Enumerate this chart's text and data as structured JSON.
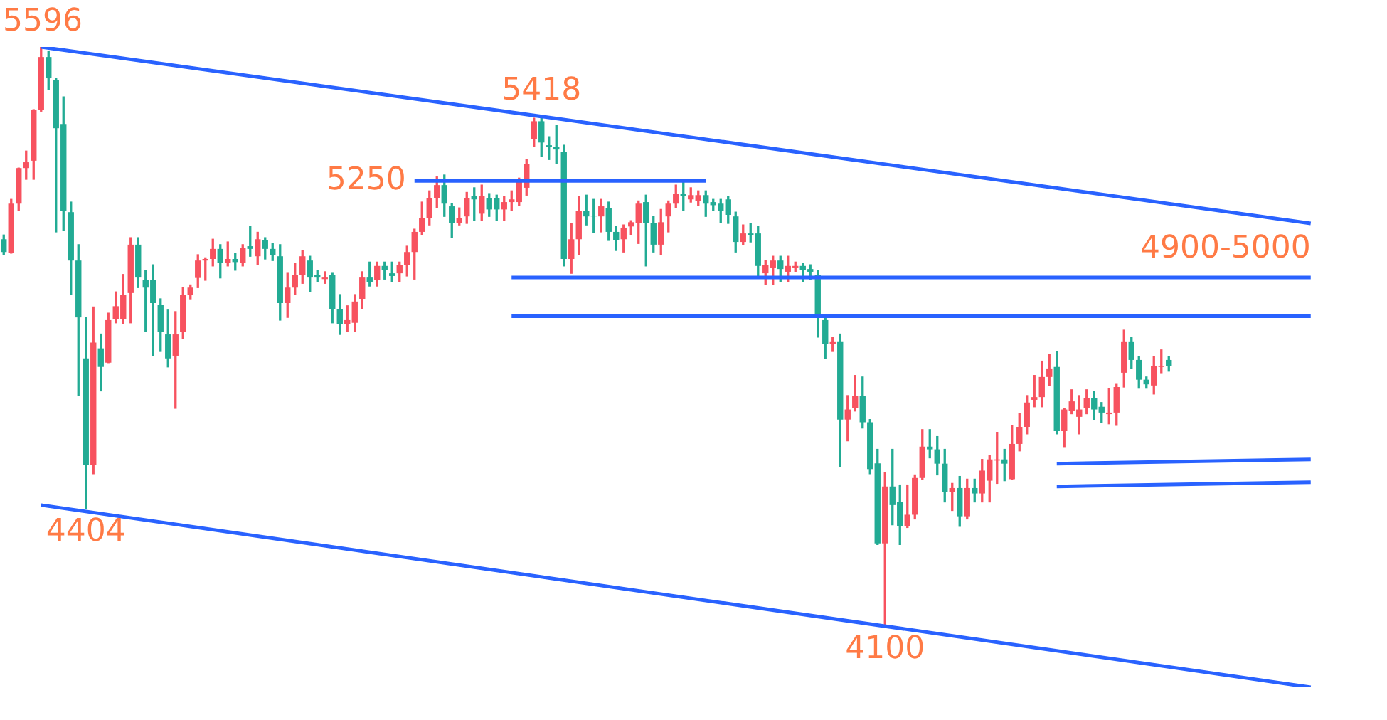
{
  "chart_data": {
    "type": "candlestick",
    "tick_labels": false,
    "colors": [
      "#22ab94",
      "#f7525f",
      "#f7525f",
      "#f7525f",
      "#f7525f",
      "#f7525f",
      "#22ab94",
      "#22ab94",
      "#22ab94",
      "#22ab94",
      "#22ab94",
      "#22ab94",
      "#f7525f",
      "#22ab94",
      "#f7525f",
      "#f7525f",
      "#f7525f",
      "#f7525f",
      "#22ab94",
      "#22ab94",
      "#22ab94",
      "#22ab94",
      "#22ab94",
      "#f7525f",
      "#f7525f",
      "#f7525f",
      "#f7525f",
      "#f7525f",
      "#f7525f",
      "#22ab94",
      "#f7525f",
      "#22ab94",
      "#f7525f",
      "#22ab94",
      "#f7525f",
      "#22ab94",
      "#22ab94",
      "#22ab94",
      "#f7525f",
      "#f7525f",
      "#f7525f",
      "#22ab94",
      "#22ab94",
      "#f7525f",
      "#22ab94",
      "#22ab94",
      "#f7525f",
      "#f7525f",
      "#f7525f",
      "#22ab94",
      "#f7525f",
      "#22ab94",
      "#22ab94",
      "#f7525f",
      "#f7525f",
      "#f7525f",
      "#f7525f",
      "#f7525f",
      "#f7525f",
      "#22ab94",
      "#22ab94",
      "#f7525f",
      "#f7525f",
      "#22ab94",
      "#f7525f",
      "#22ab94",
      "#22ab94",
      "#f7525f",
      "#f7525f",
      "#f7525f",
      "#f7525f",
      "#f7525f",
      "#22ab94",
      "#22ab94",
      "#22ab94",
      "#22ab94",
      "#f7525f",
      "#f7525f",
      "#22ab94",
      "#22ab94",
      "#f7525f",
      "#22ab94",
      "#22ab94",
      "#f7525f",
      "#f7525f",
      "#f7525f",
      "#22ab94",
      "#22ab94",
      "#f7525f",
      "#f7525f",
      "#f7525f",
      "#22ab94",
      "#f7525f",
      "#f7525f",
      "#22ab94",
      "#22ab94",
      "#22ab94",
      "#22ab94",
      "#22ab94",
      "#f7525f",
      "#22ab94",
      "#22ab94",
      "#f7525f",
      "#f7525f",
      "#22ab94",
      "#f7525f",
      "#f7525f",
      "#22ab94",
      "#22ab94",
      "#22ab94",
      "#22ab94",
      "#f7525f",
      "#22ab94",
      "#f7525f",
      "#f7525f",
      "#22ab94",
      "#22ab94",
      "#22ab94",
      "#f7525f",
      "#22ab94",
      "#22ab94",
      "#f7525f",
      "#f7525f",
      "#f7525f",
      "#22ab94",
      "#22ab94",
      "#22ab94",
      "#f7525f",
      "#22ab94",
      "#f7525f",
      "#22ab94",
      "#f7525f",
      "#f7525f",
      "#f7525f",
      "#22ab94",
      "#f7525f",
      "#f7525f",
      "#f7525f",
      "#f7525f",
      "#f7525f",
      "#f7525f",
      "#22ab94",
      "#f7525f",
      "#f7525f",
      "#f7525f",
      "#f7525f",
      "#22ab94",
      "#22ab94",
      "#f7525f",
      "#f7525f",
      "#f7525f",
      "#22ab94",
      "#22ab94",
      "#22ab94",
      "#f7525f",
      "#f7525f",
      "#22ab94",
      null,
      null,
      null,
      null,
      null,
      null,
      null,
      null,
      null,
      null,
      null,
      null,
      null,
      null,
      null,
      null,
      null,
      null,
      null
    ],
    "categories": [
      null,
      null,
      null,
      null,
      null,
      null,
      null,
      null,
      null,
      null,
      null,
      null,
      null,
      null,
      null,
      null,
      null,
      null,
      null,
      null,
      null,
      null,
      null,
      null,
      null,
      null,
      null,
      null,
      null,
      null,
      null,
      null,
      null,
      null,
      null,
      null,
      null,
      null,
      null,
      null,
      null,
      null,
      null,
      null,
      null,
      null,
      null,
      null,
      null,
      null,
      null,
      null,
      null,
      null,
      null,
      null,
      null,
      null,
      null,
      null,
      null,
      null,
      null,
      null,
      null,
      null,
      null,
      null,
      null,
      null,
      null,
      null,
      null,
      null,
      null,
      null,
      null,
      null,
      null,
      null,
      null,
      null,
      null,
      null,
      null,
      null,
      null,
      null,
      null,
      null,
      null,
      null,
      null,
      null,
      null,
      null,
      null,
      null,
      null,
      null,
      null,
      null,
      null,
      null,
      null,
      null,
      null,
      null,
      null,
      null,
      null,
      null,
      null,
      null,
      null,
      null,
      null,
      null,
      null,
      null,
      null,
      null,
      null,
      null,
      null,
      null,
      null,
      null,
      null,
      null,
      null,
      null,
      null,
      null,
      null,
      null,
      null,
      null,
      null,
      null,
      null,
      null,
      null,
      null,
      null,
      null,
      null,
      null,
      null,
      null,
      null,
      null,
      null,
      null,
      null,
      null,
      null,
      null,
      null,
      null,
      null,
      null,
      null,
      null,
      null,
      null,
      null,
      null,
      null,
      null,
      null,
      null,
      null,
      null,
      null,
      null
    ],
    "ohlc": [
      [
        5099,
        5110,
        5059,
        5066
      ],
      [
        5063,
        5202,
        5063,
        5191
      ],
      [
        5191,
        5283,
        5173,
        5283
      ],
      [
        5283,
        5327,
        5254,
        5298
      ],
      [
        5302,
        5434,
        5254,
        5434
      ],
      [
        5434,
        5596,
        5430,
        5570
      ],
      [
        5570,
        5585,
        5485,
        5515
      ],
      [
        5511,
        5515,
        5118,
        5386
      ],
      [
        5397,
        5467,
        5121,
        5173
      ],
      [
        5169,
        5195,
        4956,
        5044
      ],
      [
        5044,
        5085,
        4695,
        4897
      ],
      [
        4791,
        4897,
        4404,
        4515
      ],
      [
        4515,
        4924,
        4493,
        4832
      ],
      [
        4817,
        4854,
        4707,
        4769
      ],
      [
        4780,
        4908,
        4780,
        4890
      ],
      [
        4893,
        4963,
        4883,
        4926
      ],
      [
        4893,
        5008,
        4880,
        4956
      ],
      [
        4960,
        5103,
        4883,
        5085
      ],
      [
        5085,
        5103,
        4974,
        5000
      ],
      [
        4993,
        5019,
        4860,
        4974
      ],
      [
        4993,
        5033,
        4798,
        4934
      ],
      [
        4930,
        4945,
        4809,
        4860
      ],
      [
        4853,
        4916,
        4769,
        4791
      ],
      [
        4798,
        4912,
        4662,
        4853
      ],
      [
        4860,
        4974,
        4842,
        4956
      ],
      [
        4956,
        4981,
        4945,
        4974
      ],
      [
        4999,
        5059,
        4974,
        5044
      ],
      [
        5044,
        5051,
        4993,
        5048
      ],
      [
        5048,
        5099,
        5030,
        5074
      ],
      [
        5074,
        5085,
        4999,
        5037
      ],
      [
        5037,
        5092,
        5030,
        5048
      ],
      [
        5048,
        5062,
        5019,
        5040
      ],
      [
        5037,
        5085,
        5030,
        5077
      ],
      [
        5081,
        5132,
        5055,
        5074
      ],
      [
        5055,
        5117,
        5033,
        5099
      ],
      [
        5096,
        5103,
        5048,
        5074
      ],
      [
        5074,
        5088,
        5044,
        5059
      ],
      [
        5055,
        5085,
        4890,
        4934
      ],
      [
        4934,
        5011,
        4897,
        4974
      ],
      [
        4974,
        5037,
        4956,
        5007
      ],
      [
        5007,
        5070,
        4985,
        5055
      ],
      [
        5044,
        5055,
        4963,
        5000
      ],
      [
        5007,
        5019,
        4989,
        5000
      ],
      [
        4996,
        5015,
        4985,
        5000
      ],
      [
        5007,
        5011,
        4883,
        4919
      ],
      [
        4919,
        4956,
        4853,
        4879
      ],
      [
        4879,
        4927,
        4861,
        4890
      ],
      [
        4883,
        4956,
        4861,
        4938
      ],
      [
        4945,
        5015,
        4919,
        5000
      ],
      [
        5000,
        5040,
        4978,
        4989
      ],
      [
        4993,
        5040,
        4978,
        5030
      ],
      [
        5030,
        5040,
        4996,
        5019
      ],
      [
        5011,
        5040,
        4989,
        5004
      ],
      [
        5011,
        5040,
        4989,
        5033
      ],
      [
        5033,
        5081,
        5004,
        5066
      ],
      [
        5066,
        5125,
        4996,
        5118
      ],
      [
        5118,
        5195,
        5110,
        5154
      ],
      [
        5154,
        5224,
        5136,
        5206
      ],
      [
        5206,
        5260,
        5180,
        5239
      ],
      [
        5239,
        5265,
        5158,
        5191
      ],
      [
        5184,
        5191,
        5103,
        5140
      ],
      [
        5140,
        5180,
        5136,
        5154
      ],
      [
        5158,
        5220,
        5140,
        5206
      ],
      [
        5210,
        5232,
        5147,
        5202
      ],
      [
        5165,
        5239,
        5147,
        5210
      ],
      [
        5206,
        5217,
        5158,
        5176
      ],
      [
        5206,
        5213,
        5147,
        5176
      ],
      [
        5176,
        5210,
        5147,
        5195
      ],
      [
        5195,
        5224,
        5173,
        5202
      ],
      [
        5195,
        5257,
        5187,
        5250
      ],
      [
        5232,
        5305,
        5213,
        5294
      ],
      [
        5357,
        5412,
        5338,
        5404
      ],
      [
        5404,
        5418,
        5313,
        5349
      ],
      [
        5342,
        5364,
        5305,
        5338
      ],
      [
        5338,
        5393,
        5294,
        5331
      ],
      [
        5324,
        5342,
        5030,
        5048
      ],
      [
        5048,
        5140,
        5011,
        5099
      ],
      [
        5099,
        5210,
        5059,
        5173
      ],
      [
        5173,
        5213,
        5136,
        5158
      ],
      [
        5160,
        5202,
        5117,
        5158
      ],
      [
        5158,
        5202,
        5118,
        5184
      ],
      [
        5180,
        5195,
        5096,
        5118
      ],
      [
        5118,
        5132,
        5070,
        5096
      ],
      [
        5099,
        5136,
        5066,
        5129
      ],
      [
        5132,
        5147,
        5110,
        5143
      ],
      [
        5140,
        5198,
        5088,
        5191
      ],
      [
        5195,
        5213,
        5030,
        5140
      ],
      [
        5140,
        5158,
        5066,
        5085
      ],
      [
        5085,
        5176,
        5059,
        5143
      ],
      [
        5158,
        5198,
        5118,
        5191
      ],
      [
        5191,
        5239,
        5180,
        5217
      ],
      [
        5217,
        5246,
        5173,
        5210
      ],
      [
        5202,
        5232,
        5195,
        5213
      ],
      [
        5198,
        5224,
        5187,
        5213
      ],
      [
        5213,
        5224,
        5158,
        5191
      ],
      [
        5195,
        5202,
        5173,
        5187
      ],
      [
        5191,
        5202,
        5143,
        5173
      ],
      [
        5202,
        5209,
        5140,
        5162
      ],
      [
        5158,
        5169,
        5066,
        5092
      ],
      [
        5092,
        5136,
        5085,
        5114
      ],
      [
        5114,
        5140,
        5092,
        5110
      ],
      [
        5114,
        5132,
        5004,
        5030
      ],
      [
        5011,
        5044,
        4982,
        5033
      ],
      [
        5026,
        5055,
        4982,
        5044
      ],
      [
        5044,
        5055,
        4989,
        5022
      ],
      [
        5015,
        5055,
        4989,
        5030
      ],
      [
        5026,
        5040,
        5015,
        5030
      ],
      [
        5030,
        5036,
        4989,
        5019
      ],
      [
        5022,
        5033,
        4996,
        5015
      ],
      [
        5007,
        5019,
        4846,
        4897
      ],
      [
        4890,
        4897,
        4791,
        4828
      ],
      [
        4828,
        4846,
        4809,
        4835
      ],
      [
        4835,
        4854,
        4512,
        4633
      ],
      [
        4633,
        4695,
        4578,
        4659
      ],
      [
        4662,
        4747,
        4655,
        4695
      ],
      [
        4695,
        4743,
        4611,
        4626
      ],
      [
        4626,
        4633,
        4493,
        4505
      ],
      [
        4520,
        4556,
        4310,
        4313
      ],
      [
        4313,
        4497,
        4100,
        4460
      ],
      [
        4460,
        4556,
        4361,
        4412
      ],
      [
        4420,
        4464,
        4310,
        4357
      ],
      [
        4357,
        4464,
        4354,
        4387
      ],
      [
        4387,
        4490,
        4376,
        4482
      ],
      [
        4482,
        4607,
        4478,
        4563
      ],
      [
        4563,
        4607,
        4534,
        4556
      ],
      [
        4556,
        4589,
        4490,
        4519
      ],
      [
        4519,
        4556,
        4420,
        4445
      ],
      [
        4445,
        4468,
        4398,
        4456
      ],
      [
        4456,
        4486,
        4357,
        4383
      ],
      [
        4383,
        4479,
        4376,
        4456
      ],
      [
        4456,
        4479,
        4420,
        4442
      ],
      [
        4442,
        4530,
        4420,
        4501
      ],
      [
        4475,
        4541,
        4420,
        4530
      ],
      [
        4527,
        4600,
        4468,
        4530
      ],
      [
        4530,
        4556,
        4475,
        4519
      ],
      [
        4479,
        4618,
        4479,
        4570
      ],
      [
        4570,
        4648,
        4552,
        4614
      ],
      [
        4614,
        4695,
        4596,
        4677
      ],
      [
        4684,
        4747,
        4666,
        4691
      ],
      [
        4691,
        4784,
        4666,
        4743
      ],
      [
        4743,
        4802,
        4721,
        4765
      ],
      [
        4769,
        4809,
        4596,
        4603
      ],
      [
        4603,
        4662,
        4563,
        4659
      ],
      [
        4655,
        4710,
        4648,
        4680
      ],
      [
        4640,
        4695,
        4596,
        4659
      ],
      [
        4662,
        4710,
        4648,
        4688
      ],
      [
        4688,
        4706,
        4633,
        4659
      ],
      [
        4666,
        4677,
        4626,
        4651
      ],
      [
        4647,
        4714,
        4622,
        4651
      ],
      [
        4651,
        4724,
        4618,
        4717
      ],
      [
        4754,
        4864,
        4717,
        4835
      ],
      [
        4835,
        4846,
        4765,
        4787
      ],
      [
        4787,
        4795,
        4714,
        4736
      ],
      [
        4736,
        4743,
        4714,
        4724
      ],
      [
        4721,
        4795,
        4699,
        4772
      ],
      [
        4769,
        4813,
        4754,
        4772
      ],
      [
        4787,
        4795,
        4758,
        4772
      ],
      null,
      null,
      null,
      null,
      null,
      null,
      null,
      null,
      null,
      null,
      null,
      null,
      null,
      null,
      null,
      null,
      null,
      null,
      null
    ],
    "series": [
      {
        "type": "line",
        "color": "#2962ff",
        "values": [
          null,
          null,
          null,
          null,
          null,
          5596,
          null,
          null,
          null,
          null,
          null,
          null,
          null,
          null,
          null,
          null,
          null,
          null,
          null,
          null,
          null,
          null,
          null,
          null,
          null,
          null,
          null,
          null,
          null,
          null,
          null,
          null,
          null,
          null,
          null,
          null,
          null,
          null,
          null,
          null,
          null,
          null,
          null,
          null,
          null,
          null,
          null,
          null,
          null,
          null,
          null,
          null,
          null,
          null,
          null,
          null,
          null,
          null,
          null,
          null,
          null,
          null,
          null,
          null,
          null,
          null,
          null,
          null,
          null,
          null,
          null,
          null,
          null,
          null,
          null,
          null,
          null,
          null,
          null,
          null,
          null,
          null,
          null,
          null,
          null,
          null,
          null,
          null,
          null,
          null,
          null,
          null,
          null,
          null,
          null,
          null,
          null,
          null,
          null,
          null,
          null,
          null,
          null,
          null,
          null,
          null,
          null,
          null,
          null,
          null,
          null,
          null,
          null,
          null,
          null,
          null,
          null,
          null,
          null,
          null,
          null,
          null,
          null,
          null,
          null,
          null,
          null,
          null,
          null,
          null,
          null,
          null,
          null,
          null,
          null,
          null,
          null,
          null,
          null,
          null,
          null,
          null,
          null,
          null,
          null,
          null,
          null,
          null,
          null,
          null,
          null,
          null,
          null,
          null,
          null,
          null,
          null,
          null,
          null,
          null,
          null,
          null,
          null,
          null,
          null,
          null,
          null,
          null,
          null,
          null,
          null,
          null,
          null,
          null,
          null,
          5140
        ]
      },
      {
        "type": "line",
        "color": "#2962ff",
        "values": [
          null,
          null,
          null,
          null,
          null,
          4412,
          null,
          null,
          null,
          null,
          null,
          null,
          null,
          null,
          null,
          null,
          null,
          null,
          null,
          null,
          null,
          null,
          null,
          null,
          null,
          null,
          null,
          null,
          null,
          null,
          null,
          null,
          null,
          null,
          null,
          null,
          null,
          null,
          null,
          null,
          null,
          null,
          null,
          null,
          null,
          null,
          null,
          null,
          null,
          null,
          null,
          null,
          null,
          null,
          null,
          null,
          null,
          null,
          null,
          null,
          null,
          null,
          null,
          null,
          null,
          null,
          null,
          null,
          null,
          null,
          null,
          null,
          null,
          null,
          null,
          null,
          null,
          null,
          null,
          null,
          null,
          null,
          null,
          null,
          null,
          null,
          null,
          null,
          null,
          null,
          null,
          null,
          null,
          null,
          null,
          null,
          null,
          null,
          null,
          null,
          null,
          null,
          null,
          null,
          null,
          null,
          null,
          null,
          null,
          null,
          null,
          null,
          null,
          null,
          null,
          null,
          null,
          null,
          null,
          null,
          null,
          null,
          null,
          null,
          null,
          null,
          null,
          null,
          null,
          null,
          null,
          null,
          null,
          null,
          null,
          null,
          null,
          null,
          null,
          null,
          null,
          null,
          null,
          null,
          null,
          null,
          null,
          null,
          null,
          null,
          null,
          null,
          null,
          null,
          null,
          null,
          null,
          null,
          null,
          null,
          null,
          null,
          null,
          null,
          null,
          null,
          null,
          null,
          null,
          null,
          null,
          null,
          null,
          null,
          null,
          3941
        ]
      },
      {
        "type": "line",
        "name": "5250",
        "color": "#2962ff",
        "values": [
          null,
          null,
          null,
          null,
          null,
          null,
          null,
          null,
          null,
          null,
          null,
          null,
          null,
          null,
          null,
          null,
          null,
          null,
          null,
          null,
          null,
          null,
          null,
          null,
          null,
          null,
          null,
          null,
          null,
          null,
          null,
          null,
          null,
          null,
          null,
          null,
          null,
          null,
          null,
          null,
          null,
          null,
          null,
          null,
          null,
          null,
          null,
          null,
          null,
          null,
          null,
          null,
          null,
          null,
          null,
          5250,
          null,
          null,
          null,
          null,
          null,
          null,
          null,
          null,
          null,
          null,
          null,
          null,
          null,
          null,
          null,
          null,
          null,
          null,
          null,
          null,
          null,
          null,
          null,
          null,
          null,
          null,
          null,
          null,
          null,
          null,
          null,
          null,
          null,
          null,
          null,
          null,
          null,
          null,
          5250,
          null,
          null,
          null,
          null,
          null,
          null,
          null,
          null,
          null,
          null,
          null,
          null,
          null,
          null,
          null,
          null,
          null,
          null,
          null,
          null,
          null,
          null,
          null,
          null,
          null,
          null,
          null,
          null,
          null,
          null,
          null,
          null,
          null,
          null,
          null,
          null,
          null,
          null,
          null,
          null,
          null,
          null,
          null,
          null,
          null,
          null,
          null,
          null,
          null,
          null,
          null,
          null,
          null,
          null,
          null,
          null,
          null,
          null,
          null,
          null,
          null,
          null,
          null,
          null,
          null,
          null,
          null,
          null,
          null,
          null,
          null,
          null,
          null,
          null,
          null,
          null,
          null,
          null,
          null,
          null,
          null
        ]
      },
      {
        "type": "line",
        "color": "#2962ff",
        "values": [
          null,
          null,
          null,
          null,
          null,
          null,
          null,
          null,
          null,
          null,
          null,
          null,
          null,
          null,
          null,
          null,
          null,
          null,
          null,
          null,
          null,
          null,
          null,
          null,
          null,
          null,
          null,
          null,
          null,
          null,
          null,
          null,
          null,
          null,
          null,
          null,
          null,
          null,
          null,
          null,
          null,
          null,
          null,
          null,
          null,
          null,
          null,
          null,
          null,
          null,
          null,
          null,
          null,
          null,
          null,
          null,
          null,
          null,
          null,
          null,
          null,
          null,
          null,
          null,
          null,
          null,
          null,
          null,
          5000,
          null,
          null,
          null,
          null,
          null,
          null,
          null,
          null,
          null,
          null,
          null,
          null,
          null,
          null,
          null,
          null,
          null,
          null,
          null,
          null,
          null,
          null,
          null,
          null,
          null,
          null,
          null,
          null,
          null,
          null,
          null,
          null,
          null,
          null,
          null,
          null,
          null,
          null,
          null,
          null,
          null,
          null,
          null,
          null,
          null,
          null,
          null,
          null,
          null,
          null,
          null,
          null,
          null,
          null,
          null,
          null,
          null,
          null,
          null,
          null,
          null,
          null,
          null,
          null,
          null,
          null,
          null,
          null,
          null,
          null,
          null,
          null,
          null,
          null,
          null,
          null,
          null,
          null,
          null,
          null,
          null,
          null,
          null,
          null,
          null,
          null,
          null,
          null,
          null,
          null,
          null,
          null,
          null,
          null,
          null,
          null,
          null,
          null,
          null,
          null,
          null,
          null,
          null,
          null,
          null,
          null,
          5000
        ]
      },
      {
        "type": "line",
        "color": "#2962ff",
        "values": [
          null,
          null,
          null,
          null,
          null,
          null,
          null,
          null,
          null,
          null,
          null,
          null,
          null,
          null,
          null,
          null,
          null,
          null,
          null,
          null,
          null,
          null,
          null,
          null,
          null,
          null,
          null,
          null,
          null,
          null,
          null,
          null,
          null,
          null,
          null,
          null,
          null,
          null,
          null,
          null,
          null,
          null,
          null,
          null,
          null,
          null,
          null,
          null,
          null,
          null,
          null,
          null,
          null,
          null,
          null,
          null,
          null,
          null,
          null,
          null,
          null,
          null,
          null,
          null,
          null,
          null,
          null,
          null,
          4900,
          null,
          null,
          null,
          null,
          null,
          null,
          null,
          null,
          null,
          null,
          null,
          null,
          null,
          null,
          null,
          null,
          null,
          null,
          null,
          null,
          null,
          null,
          null,
          null,
          null,
          null,
          null,
          null,
          null,
          null,
          null,
          null,
          null,
          null,
          null,
          null,
          null,
          null,
          null,
          null,
          null,
          null,
          null,
          null,
          null,
          null,
          null,
          null,
          null,
          null,
          null,
          null,
          null,
          null,
          null,
          null,
          null,
          null,
          null,
          null,
          null,
          null,
          null,
          null,
          null,
          null,
          null,
          null,
          null,
          null,
          null,
          null,
          null,
          null,
          null,
          null,
          null,
          null,
          null,
          null,
          null,
          null,
          null,
          null,
          null,
          null,
          null,
          null,
          null,
          null,
          null,
          null,
          null,
          null,
          null,
          null,
          null,
          null,
          null,
          null,
          null,
          null,
          null,
          null,
          null,
          null,
          4900
        ]
      },
      {
        "type": "line",
        "color": "#2962ff",
        "values": [
          null,
          null,
          null,
          null,
          null,
          null,
          null,
          null,
          null,
          null,
          null,
          null,
          null,
          null,
          null,
          null,
          null,
          null,
          null,
          null,
          null,
          null,
          null,
          null,
          null,
          null,
          null,
          null,
          null,
          null,
          null,
          null,
          null,
          null,
          null,
          null,
          null,
          null,
          null,
          null,
          null,
          null,
          null,
          null,
          null,
          null,
          null,
          null,
          null,
          null,
          null,
          null,
          null,
          null,
          null,
          null,
          null,
          null,
          null,
          null,
          null,
          null,
          null,
          null,
          null,
          null,
          null,
          null,
          null,
          null,
          null,
          null,
          null,
          null,
          null,
          null,
          null,
          null,
          null,
          null,
          null,
          null,
          null,
          null,
          null,
          null,
          null,
          null,
          null,
          null,
          null,
          null,
          null,
          null,
          null,
          null,
          null,
          null,
          null,
          null,
          null,
          null,
          null,
          null,
          null,
          null,
          null,
          null,
          null,
          null,
          null,
          null,
          null,
          null,
          null,
          null,
          null,
          null,
          null,
          null,
          null,
          null,
          null,
          null,
          null,
          null,
          null,
          null,
          null,
          null,
          null,
          null,
          null,
          null,
          null,
          null,
          null,
          null,
          null,
          null,
          null,
          4519,
          null,
          null,
          null,
          null,
          null,
          null,
          null,
          null,
          null,
          null,
          null,
          null,
          null,
          null,
          null,
          null,
          null,
          null,
          null,
          null,
          null,
          null,
          null,
          null,
          null,
          null,
          null,
          null,
          null,
          null,
          null,
          null,
          null,
          4530
        ]
      },
      {
        "type": "line",
        "color": "#2962ff",
        "values": [
          null,
          null,
          null,
          null,
          null,
          null,
          null,
          null,
          null,
          null,
          null,
          null,
          null,
          null,
          null,
          null,
          null,
          null,
          null,
          null,
          null,
          null,
          null,
          null,
          null,
          null,
          null,
          null,
          null,
          null,
          null,
          null,
          null,
          null,
          null,
          null,
          null,
          null,
          null,
          null,
          null,
          null,
          null,
          null,
          null,
          null,
          null,
          null,
          null,
          null,
          null,
          null,
          null,
          null,
          null,
          null,
          null,
          null,
          null,
          null,
          null,
          null,
          null,
          null,
          null,
          null,
          null,
          null,
          null,
          null,
          null,
          null,
          null,
          null,
          null,
          null,
          null,
          null,
          null,
          null,
          null,
          null,
          null,
          null,
          null,
          null,
          null,
          null,
          null,
          null,
          null,
          null,
          null,
          null,
          null,
          null,
          null,
          null,
          null,
          null,
          null,
          null,
          null,
          null,
          null,
          null,
          null,
          null,
          null,
          null,
          null,
          null,
          null,
          null,
          null,
          null,
          null,
          null,
          null,
          null,
          null,
          null,
          null,
          null,
          null,
          null,
          null,
          null,
          null,
          null,
          null,
          null,
          null,
          null,
          null,
          null,
          null,
          null,
          null,
          null,
          null,
          4460,
          null,
          null,
          null,
          null,
          null,
          null,
          null,
          null,
          null,
          null,
          null,
          null,
          null,
          null,
          null,
          null,
          null,
          null,
          null,
          null,
          null,
          null,
          null,
          null,
          null,
          null,
          null,
          null,
          null,
          null,
          null,
          null,
          null,
          4471
        ]
      }
    ],
    "annotations": [
      {
        "text": "5596",
        "y": 5596
      },
      {
        "text": "5418",
        "y": 5418
      },
      {
        "text": "4900-5000",
        "y": 5000
      },
      {
        "text": "4404",
        "y": 4404
      },
      {
        "text": "4100",
        "y": 4100
      }
    ]
  }
}
